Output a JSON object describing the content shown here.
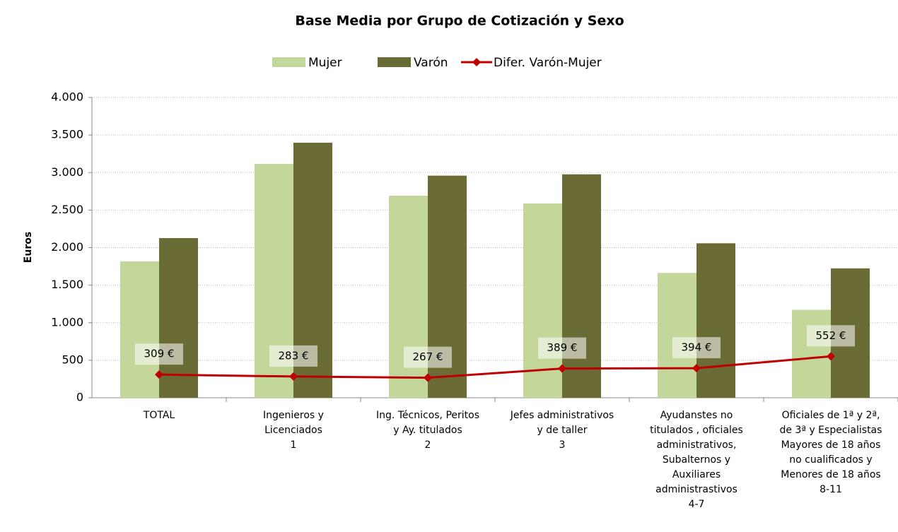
{
  "chart_data": {
    "type": "bar",
    "title": "Base Media por Grupo de Cotización y Sexo",
    "y_label": "Euros",
    "categories": [
      "TOTAL",
      "Ingenieros y\nLicenciados\n1",
      "Ing. Técnicos, Peritos\ny Ay. titulados\n2",
      "Jefes administrativos\ny de taller\n3",
      "Ayudanstes no\ntitulados , oficiales\nadministrativos,\nSubalternos y\nAuxiliares\nadministrastivos\n4-7",
      "Oficiales de 1ª y 2ª,\nde 3ª y Especialistas\nMayores de 18 años\nno cualificados y\nMenores de 18 años\n8-11"
    ],
    "series": [
      {
        "name": "Mujer",
        "type": "bar",
        "color": "#c4d79b",
        "values": [
          1818,
          3115,
          2692,
          2588,
          1664,
          1172
        ]
      },
      {
        "name": "Varón",
        "type": "bar",
        "color": "#6b6b35",
        "values": [
          2127,
          3398,
          2959,
          2977,
          2058,
          1724
        ]
      },
      {
        "name": "Difer. Varón-Mujer",
        "type": "line",
        "color": "#c00000",
        "values": [
          309,
          283,
          267,
          389,
          394,
          552
        ],
        "value_labels": [
          "309 €",
          "283 €",
          "267 €",
          "389 €",
          "394 €",
          "552 €"
        ]
      }
    ],
    "ylim": [
      0,
      4000
    ],
    "yticks": [
      0,
      500,
      {
        "value": 1000,
        "label": "1.000"
      },
      {
        "value": 1500,
        "label": "1.500"
      },
      {
        "value": 2000,
        "label": "2.000"
      },
      {
        "value": 2500,
        "label": "2.500"
      },
      {
        "value": 3000,
        "label": "3.000"
      },
      {
        "value": 3500,
        "label": "3.500"
      },
      {
        "value": 4000,
        "label": "4.000"
      }
    ],
    "grid": true,
    "legend": "top"
  }
}
